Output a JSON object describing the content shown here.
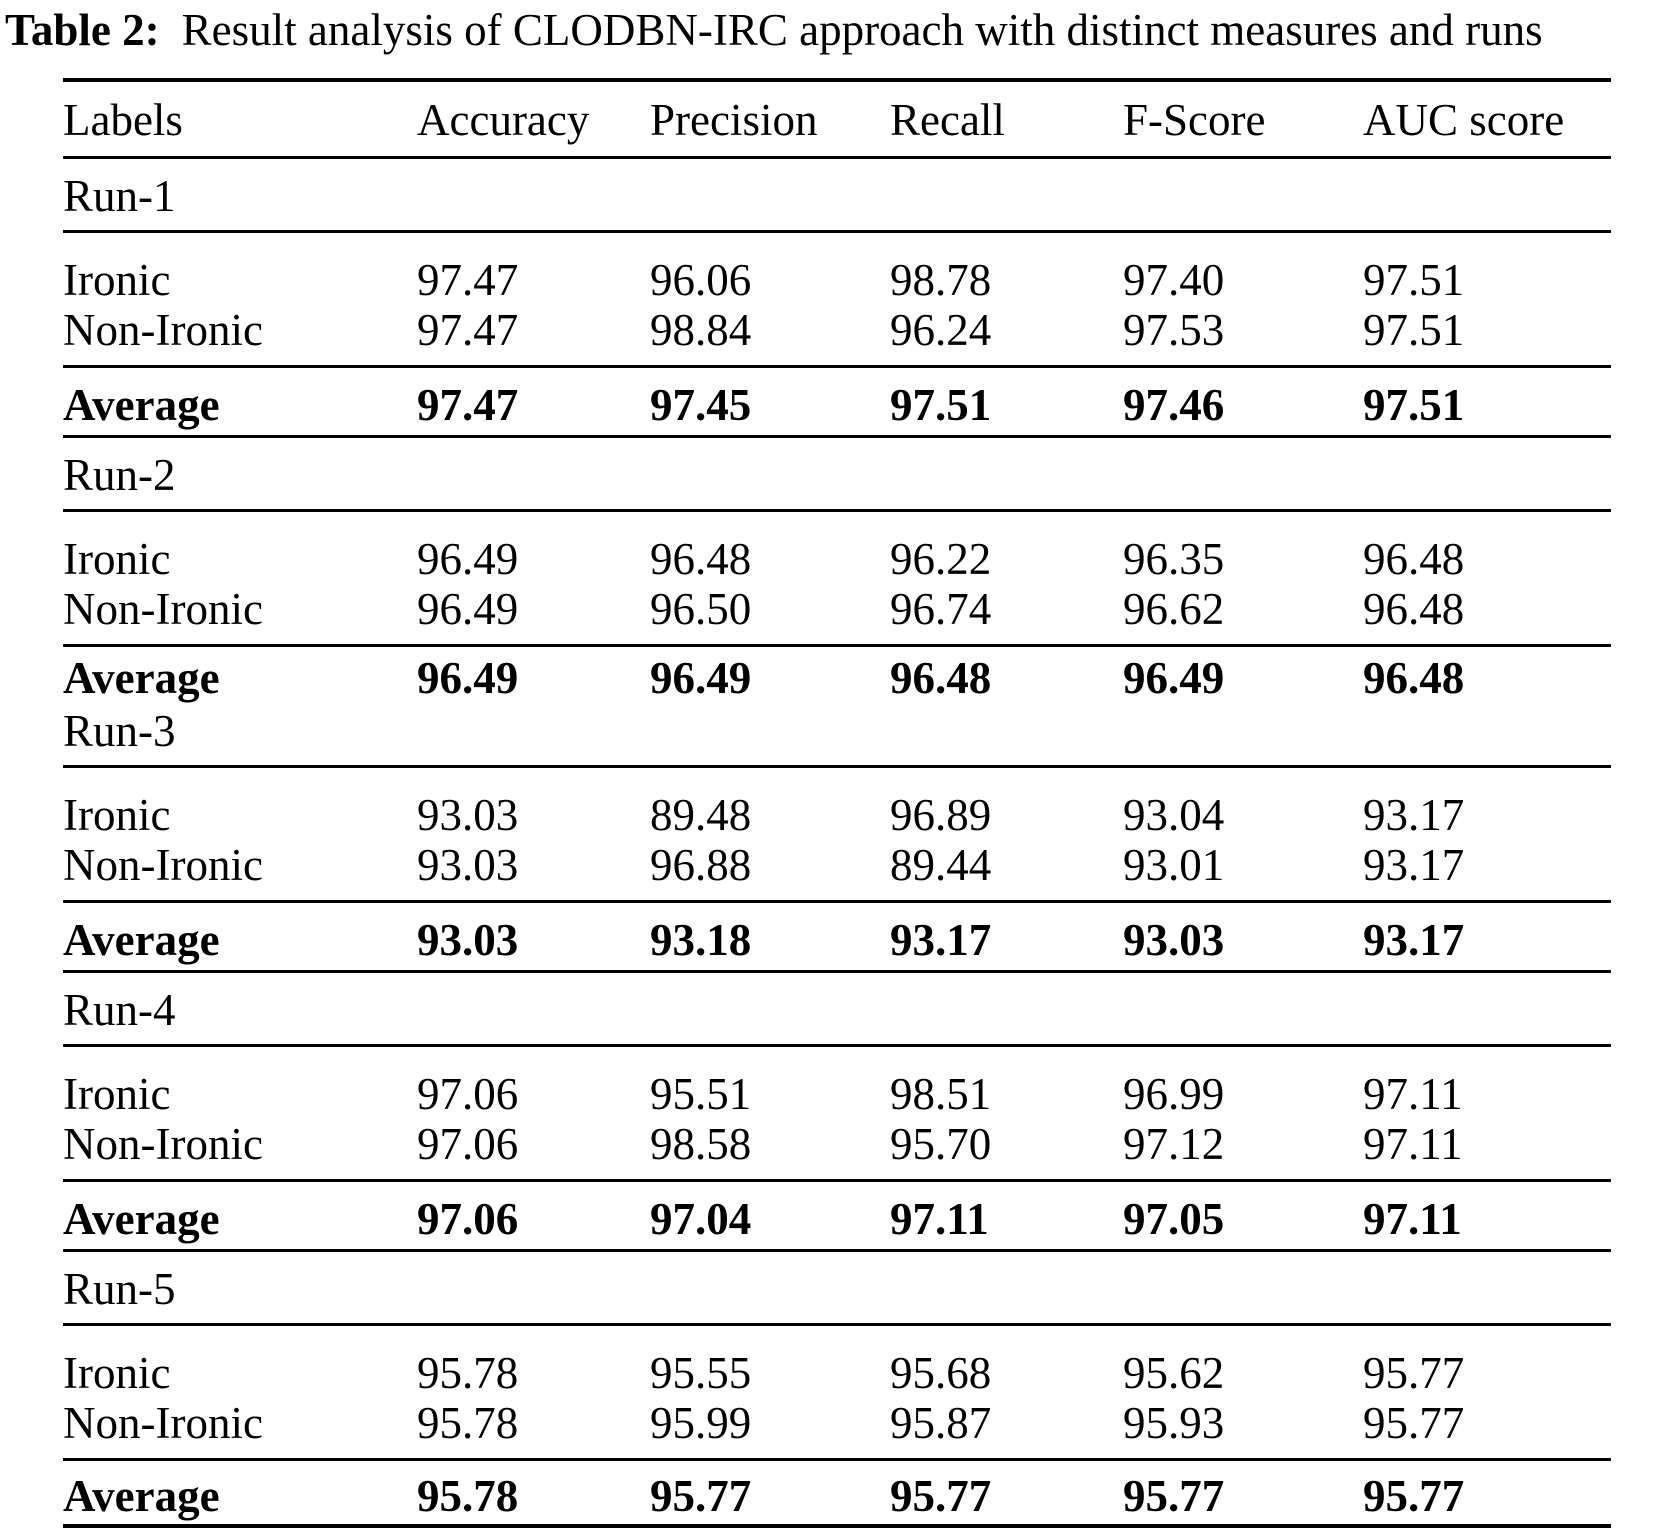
{
  "caption": {
    "tag": "Table 2:",
    "text": "Result analysis of CLODBN-IRC approach with distinct measures and runs"
  },
  "table": {
    "columns": [
      "Labels",
      "Accuracy",
      "Precision",
      "Recall",
      "F-Score",
      "AUC score"
    ],
    "sections": [
      {
        "run": "Run-1",
        "divider_after_average": true,
        "rows": [
          {
            "label": "Ironic",
            "values": [
              "97.47",
              "96.06",
              "98.78",
              "97.40",
              "97.51"
            ]
          },
          {
            "label": "Non-Ironic",
            "values": [
              "97.47",
              "98.84",
              "96.24",
              "97.53",
              "97.51"
            ]
          }
        ],
        "average": {
          "label": "Average",
          "values": [
            "97.47",
            "97.45",
            "97.51",
            "97.46",
            "97.51"
          ]
        }
      },
      {
        "run": "Run-2",
        "divider_after_average": false,
        "rows": [
          {
            "label": "Ironic",
            "values": [
              "96.49",
              "96.48",
              "96.22",
              "96.35",
              "96.48"
            ]
          },
          {
            "label": "Non-Ironic",
            "values": [
              "96.49",
              "96.50",
              "96.74",
              "96.62",
              "96.48"
            ]
          }
        ],
        "average": {
          "label": "Average",
          "values": [
            "96.49",
            "96.49",
            "96.48",
            "96.49",
            "96.48"
          ]
        }
      },
      {
        "run": "Run-3",
        "divider_after_average": true,
        "rows": [
          {
            "label": "Ironic",
            "values": [
              "93.03",
              "89.48",
              "96.89",
              "93.04",
              "93.17"
            ]
          },
          {
            "label": "Non-Ironic",
            "values": [
              "93.03",
              "96.88",
              "89.44",
              "93.01",
              "93.17"
            ]
          }
        ],
        "average": {
          "label": "Average",
          "values": [
            "93.03",
            "93.18",
            "93.17",
            "93.03",
            "93.17"
          ]
        }
      },
      {
        "run": "Run-4",
        "divider_after_average": true,
        "rows": [
          {
            "label": "Ironic",
            "values": [
              "97.06",
              "95.51",
              "98.51",
              "96.99",
              "97.11"
            ]
          },
          {
            "label": "Non-Ironic",
            "values": [
              "97.06",
              "98.58",
              "95.70",
              "97.12",
              "97.11"
            ]
          }
        ],
        "average": {
          "label": "Average",
          "values": [
            "97.06",
            "97.04",
            "97.11",
            "97.05",
            "97.11"
          ]
        }
      },
      {
        "run": "Run-5",
        "divider_after_average": true,
        "rows": [
          {
            "label": "Ironic",
            "values": [
              "95.78",
              "95.55",
              "95.68",
              "95.62",
              "95.77"
            ]
          },
          {
            "label": "Non-Ironic",
            "values": [
              "95.78",
              "95.99",
              "95.87",
              "95.93",
              "95.77"
            ]
          }
        ],
        "average": {
          "label": "Average",
          "values": [
            "95.78",
            "95.77",
            "95.77",
            "95.77",
            "95.77"
          ]
        }
      }
    ]
  }
}
